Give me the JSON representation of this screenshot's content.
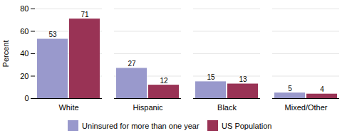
{
  "chart_data": {
    "type": "bar",
    "categories": [
      "White",
      "Hispanic",
      "Black",
      "Mixed/Other"
    ],
    "series": [
      {
        "name": "Uninsured for more than one year",
        "color": "#9999CC",
        "values": [
          53,
          27,
          15,
          5
        ]
      },
      {
        "name": "US Population",
        "color": "#993355",
        "values": [
          71,
          12,
          13,
          4
        ]
      }
    ],
    "ylabel": "Percent",
    "ylim": [
      0,
      80
    ],
    "yticks": [
      0,
      20,
      40,
      60,
      80
    ],
    "grid": true,
    "data_labels": true,
    "legend": "bottom"
  }
}
